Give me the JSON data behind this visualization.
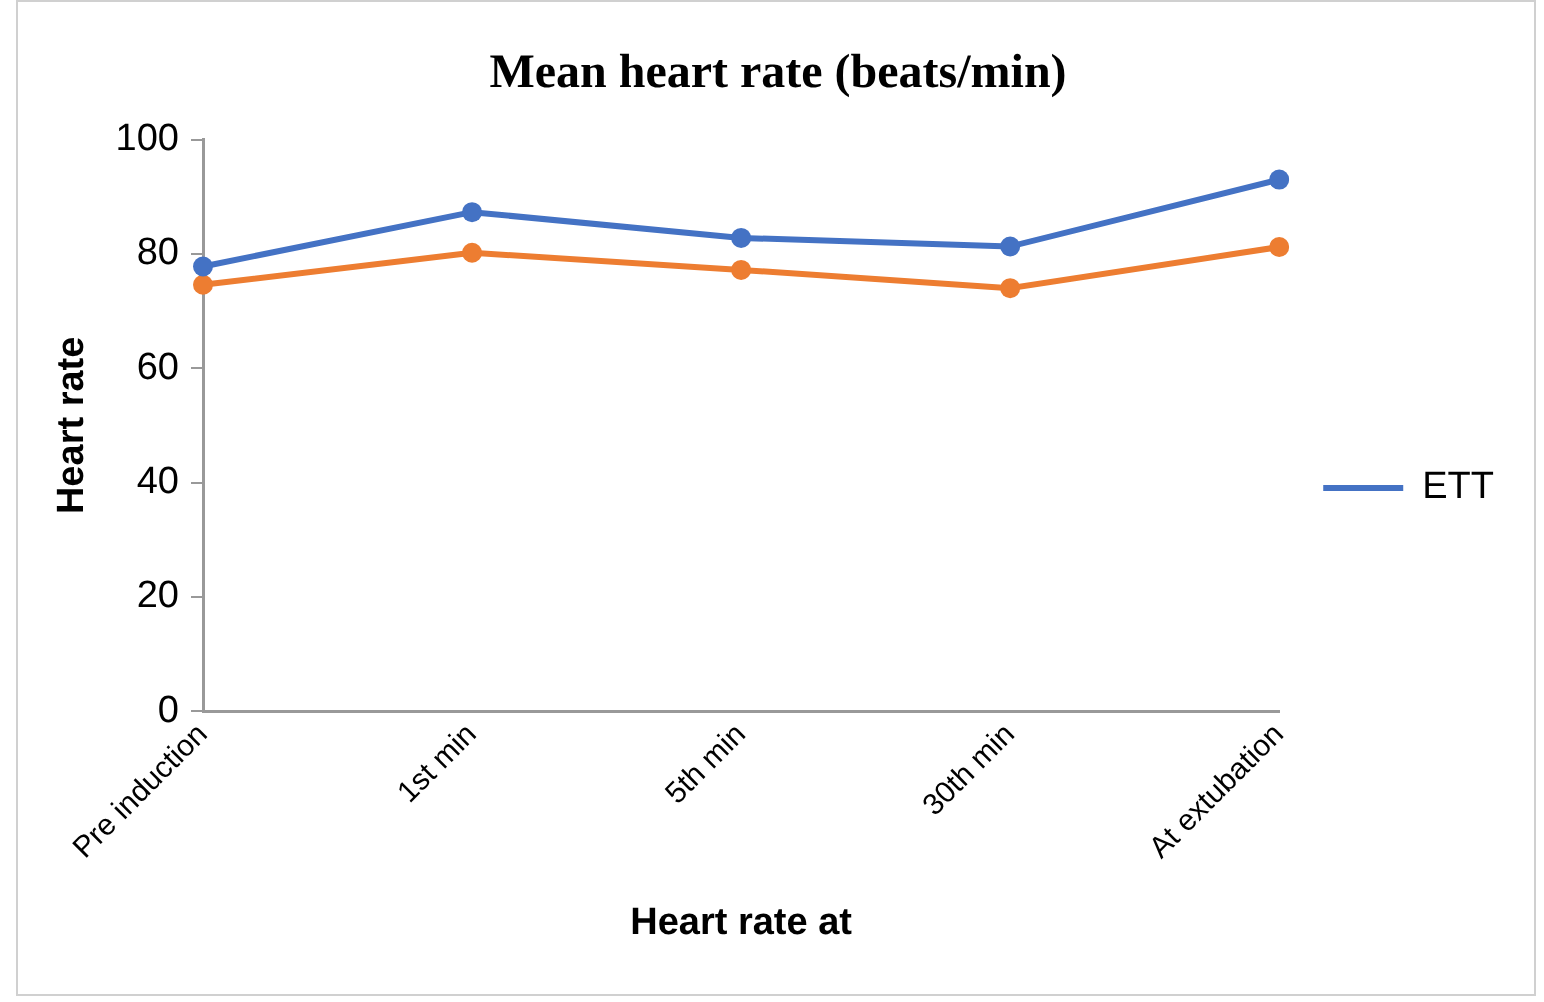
{
  "chart_data": {
    "type": "line",
    "title": "Mean heart rate (beats/min)",
    "xlabel": "Heart rate at",
    "ylabel": "Heart rate",
    "categories": [
      "Pre induction",
      "1st min",
      "5th min",
      "30th min",
      "At extubation"
    ],
    "series": [
      {
        "name": "ETT",
        "color": "#4472c4",
        "values": [
          77.8,
          87.3,
          82.8,
          81.3,
          93
        ]
      },
      {
        "color": "#ed7d31",
        "values": [
          74.6,
          80.2,
          77.2,
          74,
          81.2
        ]
      }
    ],
    "ylim": [
      0,
      100
    ],
    "yticks": [
      0,
      20,
      40,
      60,
      80,
      100
    ],
    "grid": false,
    "legend": "right",
    "marker": "circle",
    "line_style": "solid"
  }
}
